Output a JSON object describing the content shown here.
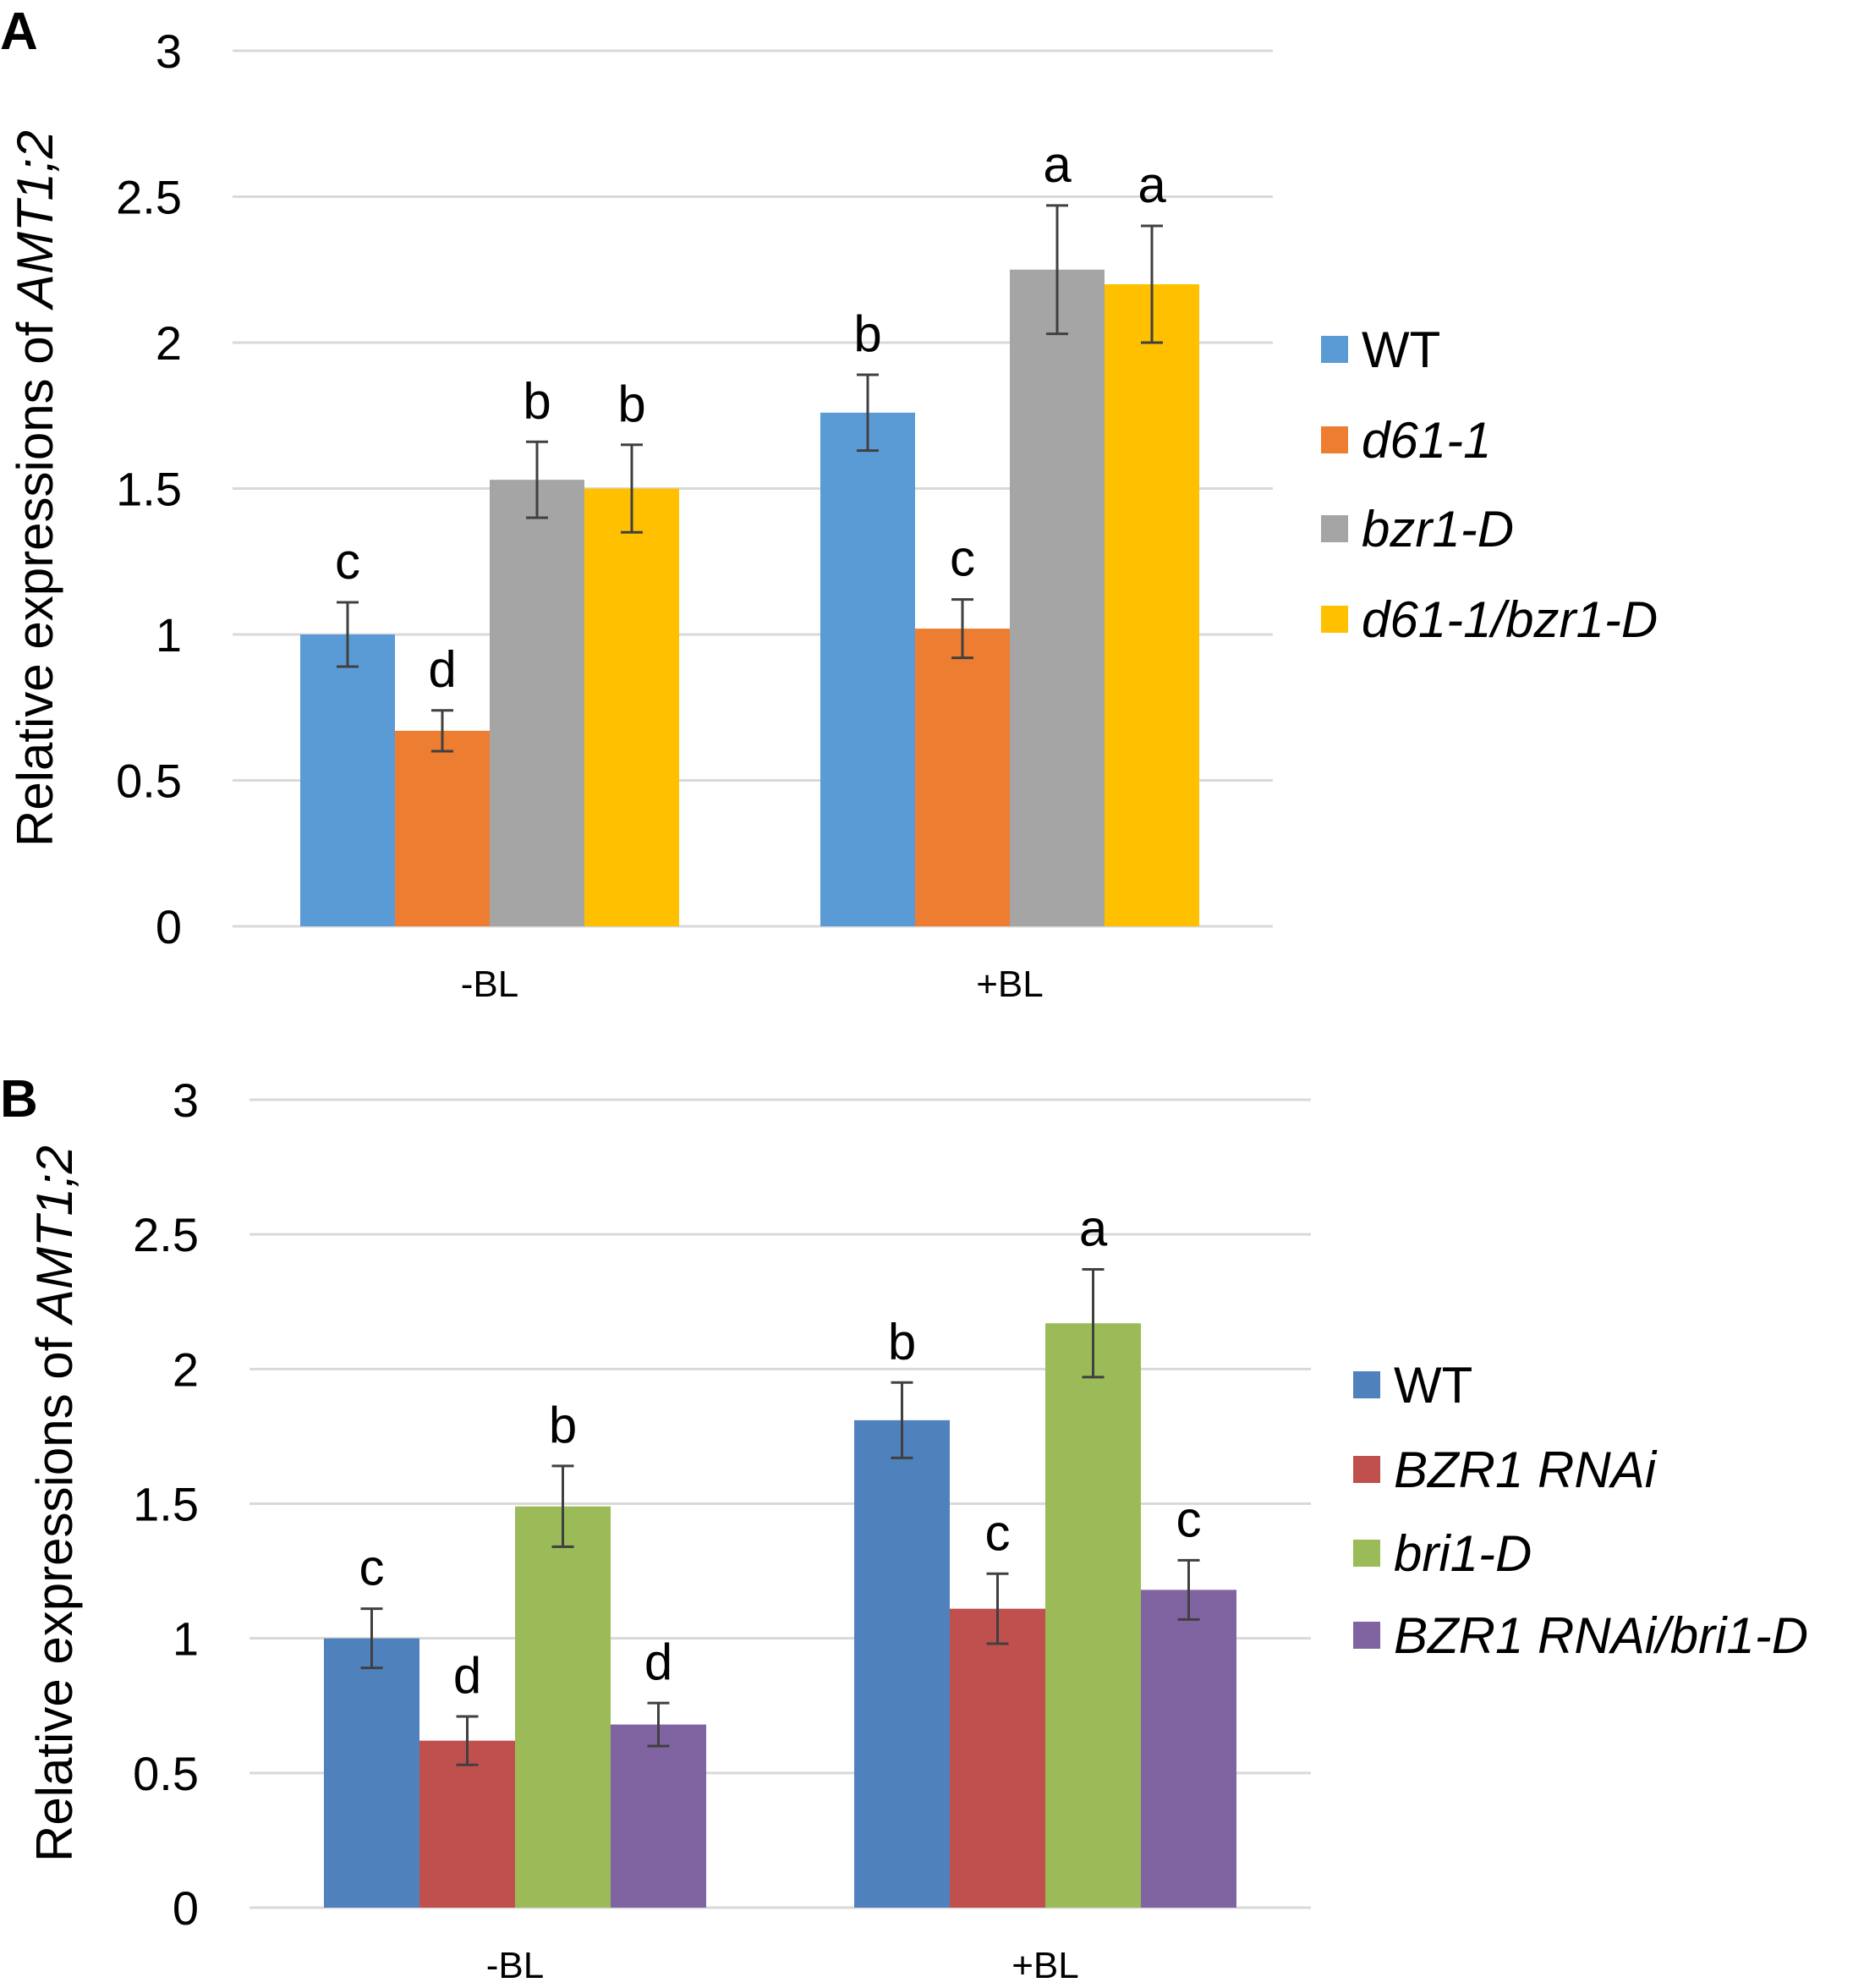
{
  "chart_data": [
    {
      "panel": "A",
      "type": "bar",
      "title": "",
      "xlabel": "",
      "ylabel_prefix": "Relative expressions of ",
      "ylabel_gene": "AMT1;2",
      "ylim": [
        0,
        3
      ],
      "yticks": [
        "0",
        "0.5",
        "1",
        "1.5",
        "2",
        "2.5",
        "3"
      ],
      "grid": true,
      "legend_position": "right",
      "categories": [
        "-BL",
        "+BL"
      ],
      "series": [
        {
          "name": "WT",
          "italic": false,
          "color": "#5B9BD5",
          "values": [
            1.0,
            1.76
          ],
          "errors": [
            0.11,
            0.13
          ],
          "labels": [
            "c",
            "b"
          ]
        },
        {
          "name": "d61-1",
          "italic": true,
          "color": "#ED7D31",
          "values": [
            0.67,
            1.02
          ],
          "errors": [
            0.07,
            0.1
          ],
          "labels": [
            "d",
            "c"
          ]
        },
        {
          "name": "bzr1-D",
          "italic": true,
          "color": "#A5A5A5",
          "values": [
            1.53,
            2.25
          ],
          "errors": [
            0.13,
            0.22
          ],
          "labels": [
            "b",
            "a"
          ]
        },
        {
          "name": "d61-1/bzr1-D",
          "italic": true,
          "color": "#FFC000",
          "values": [
            1.5,
            2.2
          ],
          "errors": [
            0.15,
            0.2
          ],
          "labels": [
            "b",
            "a"
          ]
        }
      ]
    },
    {
      "panel": "B",
      "type": "bar",
      "title": "",
      "xlabel": "",
      "ylabel_prefix": "Relative expressions of ",
      "ylabel_gene": "AMT1;2",
      "ylim": [
        0,
        3
      ],
      "yticks": [
        "0",
        "0.5",
        "1",
        "1.5",
        "2",
        "2.5",
        "3"
      ],
      "grid": true,
      "legend_position": "right",
      "categories": [
        "-BL",
        "+BL"
      ],
      "series": [
        {
          "name": "WT",
          "italic": false,
          "color": "#4F81BD",
          "values": [
            1.0,
            1.81
          ],
          "errors": [
            0.11,
            0.14
          ],
          "labels": [
            "c",
            "b"
          ]
        },
        {
          "name": "BZR1 RNAi",
          "italic": true,
          "color": "#C0504D",
          "values": [
            0.62,
            1.11
          ],
          "errors": [
            0.09,
            0.13
          ],
          "labels": [
            "d",
            "c"
          ]
        },
        {
          "name": "bri1-D",
          "italic": true,
          "color": "#9BBB59",
          "values": [
            1.49,
            2.17
          ],
          "errors": [
            0.15,
            0.2
          ],
          "labels": [
            "b",
            "a"
          ]
        },
        {
          "name": "BZR1 RNAi/bri1-D",
          "italic": true,
          "color": "#8064A2",
          "values": [
            0.68,
            1.18
          ],
          "errors": [
            0.08,
            0.11
          ],
          "labels": [
            "d",
            "c"
          ]
        }
      ]
    }
  ]
}
